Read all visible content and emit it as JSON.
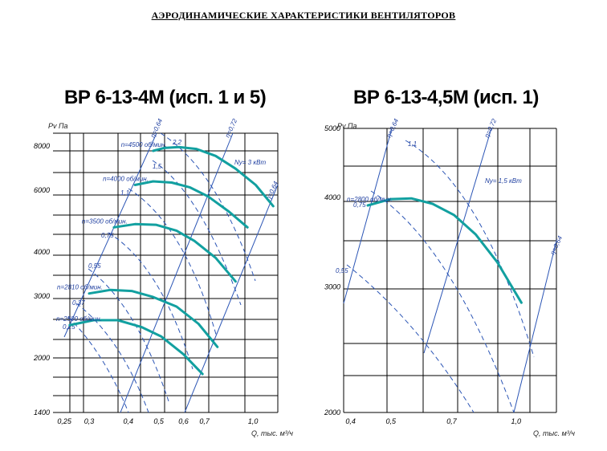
{
  "page": {
    "title": "АЭРОДИНАМИЧЕСКИЕ ХАРАКТЕРИСТИКИ ВЕНТИЛЯТОРОВ"
  },
  "colors": {
    "curve": "#12a0a0",
    "line": "#2b55b5",
    "grid": "#000000"
  },
  "chart_data": [
    {
      "type": "line",
      "title": "ВР 6-13-4М (исп. 1 и 5)",
      "ylabel": "Pv Па",
      "xlabel": "Q, тыс. м³/ч",
      "xscale": "log",
      "yscale": "log",
      "xlim": [
        0.23,
        1.2
      ],
      "ylim": [
        1400,
        8700
      ],
      "x_ticks": [
        "0,25",
        "0,3",
        "0,4",
        "0,5",
        "0,6",
        "0,7",
        "1,0"
      ],
      "x_tick_values": [
        0.25,
        0.3,
        0.4,
        0.5,
        0.6,
        0.7,
        1.0
      ],
      "y_ticks": [
        "1400",
        "2000",
        "3000",
        "4000",
        "6000",
        "8000"
      ],
      "y_tick_values": [
        1400,
        2000,
        3000,
        4000,
        6000,
        8000
      ],
      "series": [
        {
          "name": "n=4500 об/мин.",
          "points": [
            [
              0.48,
              7750
            ],
            [
              0.52,
              7900
            ],
            [
              0.58,
              7950
            ],
            [
              0.66,
              7850
            ],
            [
              0.76,
              7500
            ],
            [
              0.88,
              6900
            ],
            [
              1.02,
              6200
            ],
            [
              1.16,
              5400
            ]
          ]
        },
        {
          "name": "n=4000 об/мин.",
          "points": [
            [
              0.42,
              6200
            ],
            [
              0.48,
              6350
            ],
            [
              0.55,
              6300
            ],
            [
              0.63,
              6100
            ],
            [
              0.72,
              5750
            ],
            [
              0.84,
              5200
            ],
            [
              0.96,
              4700
            ]
          ]
        },
        {
          "name": "n=3500 об/мин.",
          "points": [
            [
              0.36,
              4700
            ],
            [
              0.42,
              4800
            ],
            [
              0.49,
              4780
            ],
            [
              0.57,
              4600
            ],
            [
              0.65,
              4300
            ],
            [
              0.76,
              3850
            ],
            [
              0.88,
              3300
            ]
          ]
        },
        {
          "name": "n=2810 об/мин.",
          "points": [
            [
              0.3,
              3050
            ],
            [
              0.35,
              3120
            ],
            [
              0.41,
              3100
            ],
            [
              0.48,
              2980
            ],
            [
              0.57,
              2800
            ],
            [
              0.67,
              2500
            ],
            [
              0.77,
              2150
            ]
          ]
        },
        {
          "name": "n=2500 об/мин.",
          "points": [
            [
              0.26,
              2480
            ],
            [
              0.31,
              2560
            ],
            [
              0.37,
              2560
            ],
            [
              0.44,
              2450
            ],
            [
              0.51,
              2300
            ],
            [
              0.6,
              2050
            ],
            [
              0.69,
              1800
            ]
          ]
        }
      ],
      "power_labels": [
        "2,2",
        "1,5",
        "1,1",
        "0,75",
        "0,55",
        "0,37",
        "0,25"
      ],
      "efficiency_labels": [
        "η=0,64",
        "η=0,72",
        "η=0,64"
      ],
      "power_units_label": "Nу= 3 кВт"
    },
    {
      "type": "line",
      "title": "ВР 6-13-4,5М (исп. 1)",
      "ylabel": "Pv Па",
      "xlabel": "Q, тыс. м³/ч",
      "xscale": "log",
      "yscale": "log",
      "xlim": [
        0.385,
        1.25
      ],
      "ylim": [
        2000,
        5000
      ],
      "x_ticks": [
        "0,4",
        "0,5",
        "0,7",
        "1,0"
      ],
      "x_tick_values": [
        0.4,
        0.5,
        0.7,
        1.0
      ],
      "y_ticks": [
        "2000",
        "3000",
        "4000",
        "5000"
      ],
      "y_tick_values": [
        2000,
        3000,
        4000,
        5000
      ],
      "series": [
        {
          "name": "n=2800 об/мин.",
          "points": [
            [
              0.44,
              3900
            ],
            [
              0.5,
              3980
            ],
            [
              0.56,
              3990
            ],
            [
              0.63,
              3920
            ],
            [
              0.71,
              3780
            ],
            [
              0.8,
              3550
            ],
            [
              0.9,
              3250
            ],
            [
              1.03,
              2850
            ]
          ]
        }
      ],
      "power_labels": [
        "1,1",
        "0,75",
        "0,55"
      ],
      "efficiency_labels": [
        "η=0,64",
        "η=0,72",
        "η=0,64"
      ],
      "power_units_label": "Nу= 1,5 кВт"
    }
  ]
}
